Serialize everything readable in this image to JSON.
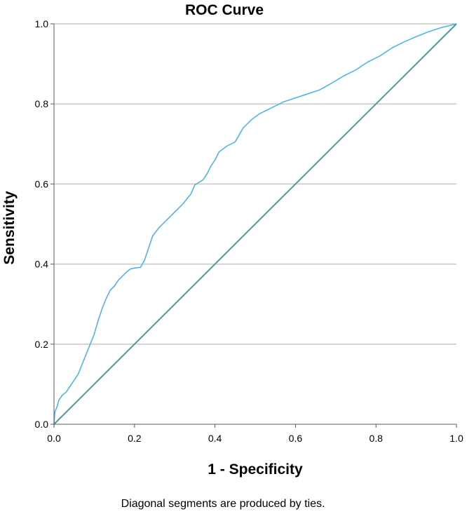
{
  "chart_data": {
    "type": "line",
    "title": "ROC Curve",
    "xlabel": "1 - Specificity",
    "ylabel": "Sensitivity",
    "xlim": [
      0.0,
      1.0
    ],
    "ylim": [
      0.0,
      1.0
    ],
    "x_ticks": [
      "0.0",
      "0.2",
      "0.4",
      "0.6",
      "0.8",
      "1.0"
    ],
    "y_ticks": [
      "0.0",
      "0.2",
      "0.4",
      "0.6",
      "0.8",
      "1.0"
    ],
    "grid": "horizontal",
    "legend": "none",
    "colors": {
      "roc_curve": "#4fb4ea",
      "reference_line": "#4d9aa0",
      "grid": "#c8c8c8",
      "axis": "#5a5a5a"
    },
    "series": [
      {
        "values": [
          [
            0.0,
            0.0
          ],
          [
            0.002,
            0.03
          ],
          [
            0.008,
            0.045
          ],
          [
            0.012,
            0.06
          ],
          [
            0.02,
            0.072
          ],
          [
            0.03,
            0.08
          ],
          [
            0.04,
            0.095
          ],
          [
            0.05,
            0.11
          ],
          [
            0.06,
            0.125
          ],
          [
            0.07,
            0.15
          ],
          [
            0.08,
            0.175
          ],
          [
            0.09,
            0.2
          ],
          [
            0.1,
            0.225
          ],
          [
            0.11,
            0.26
          ],
          [
            0.12,
            0.29
          ],
          [
            0.13,
            0.315
          ],
          [
            0.14,
            0.335
          ],
          [
            0.15,
            0.345
          ],
          [
            0.16,
            0.36
          ],
          [
            0.17,
            0.37
          ],
          [
            0.18,
            0.38
          ],
          [
            0.19,
            0.388
          ],
          [
            0.2,
            0.39
          ],
          [
            0.215,
            0.392
          ],
          [
            0.225,
            0.41
          ],
          [
            0.235,
            0.44
          ],
          [
            0.245,
            0.47
          ],
          [
            0.26,
            0.49
          ],
          [
            0.28,
            0.51
          ],
          [
            0.3,
            0.53
          ],
          [
            0.32,
            0.55
          ],
          [
            0.34,
            0.575
          ],
          [
            0.35,
            0.598
          ],
          [
            0.37,
            0.61
          ],
          [
            0.38,
            0.625
          ],
          [
            0.39,
            0.645
          ],
          [
            0.4,
            0.66
          ],
          [
            0.41,
            0.68
          ],
          [
            0.43,
            0.695
          ],
          [
            0.45,
            0.705
          ],
          [
            0.47,
            0.74
          ],
          [
            0.49,
            0.76
          ],
          [
            0.51,
            0.775
          ],
          [
            0.53,
            0.785
          ],
          [
            0.55,
            0.795
          ],
          [
            0.57,
            0.805
          ],
          [
            0.6,
            0.815
          ],
          [
            0.63,
            0.825
          ],
          [
            0.66,
            0.835
          ],
          [
            0.69,
            0.852
          ],
          [
            0.72,
            0.87
          ],
          [
            0.75,
            0.885
          ],
          [
            0.78,
            0.905
          ],
          [
            0.81,
            0.92
          ],
          [
            0.84,
            0.94
          ],
          [
            0.87,
            0.955
          ],
          [
            0.9,
            0.968
          ],
          [
            0.93,
            0.98
          ],
          [
            0.96,
            0.99
          ],
          [
            0.98,
            0.995
          ],
          [
            1.0,
            1.0
          ]
        ]
      },
      {
        "values": [
          [
            0.0,
            0.0
          ],
          [
            1.0,
            1.0
          ]
        ]
      }
    ],
    "footnote": "Diagonal segments are produced by ties."
  }
}
